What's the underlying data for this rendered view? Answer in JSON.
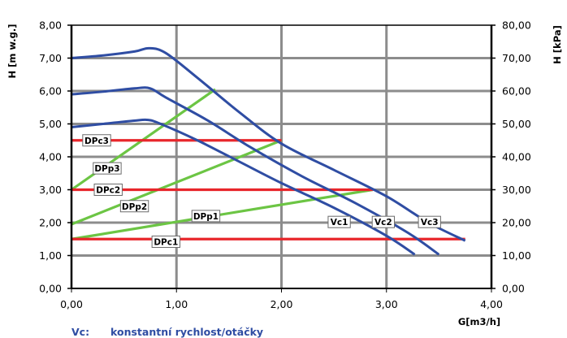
{
  "colors": {
    "pump_curve": "#2f4da3",
    "system_curve": "#6cc544",
    "pressure_line": "#e8262b",
    "grid": "#8c8c8c",
    "axis": "#000000"
  },
  "chart_data": {
    "type": "line",
    "xlabel": "G[m3/h]",
    "ylabel_left": "H [m w.g.]",
    "ylabel_right": "H [kPa]",
    "xlim": [
      0,
      4
    ],
    "ylim_left": [
      0,
      8
    ],
    "ylim_right": [
      0,
      80
    ],
    "x_ticks": [
      "0,00",
      "1,00",
      "2,00",
      "3,00",
      "4,00"
    ],
    "y_left_ticks": [
      "0,00",
      "1,00",
      "2,00",
      "3,00",
      "4,00",
      "5,00",
      "6,00",
      "7,00",
      "8,00"
    ],
    "y_right_ticks": [
      "0,00",
      "10,00",
      "20,00",
      "30,00",
      "40,00",
      "50,00",
      "60,00",
      "70,00",
      "80,00"
    ],
    "grid": true,
    "series": [
      {
        "name": "Vc1",
        "kind": "pump",
        "color": "#2f4da3",
        "x": [
          0,
          0.3,
          0.6,
          0.73,
          0.85,
          1.2,
          1.6,
          2.0,
          2.5,
          3.0,
          3.27
        ],
        "y": [
          4.9,
          5.0,
          5.1,
          5.12,
          5.0,
          4.5,
          3.85,
          3.2,
          2.45,
          1.6,
          1.03
        ]
      },
      {
        "name": "Vc2",
        "kind": "pump",
        "color": "#2f4da3",
        "x": [
          0,
          0.3,
          0.6,
          0.75,
          0.9,
          1.3,
          1.7,
          2.2,
          2.7,
          3.2,
          3.5
        ],
        "y": [
          5.9,
          5.98,
          6.08,
          6.08,
          5.8,
          5.1,
          4.3,
          3.4,
          2.6,
          1.7,
          1.03
        ]
      },
      {
        "name": "Vc3",
        "kind": "pump",
        "color": "#2f4da3",
        "x": [
          0,
          0.3,
          0.6,
          0.74,
          0.9,
          1.2,
          1.6,
          2.0,
          2.5,
          3.0,
          3.4,
          3.75
        ],
        "y": [
          7.0,
          7.08,
          7.2,
          7.3,
          7.15,
          6.4,
          5.35,
          4.4,
          3.6,
          2.8,
          2.0,
          1.45
        ]
      },
      {
        "name": "DPp1",
        "kind": "system",
        "color": "#6cc544",
        "x": [
          0,
          2.87
        ],
        "y": [
          1.5,
          3.0
        ]
      },
      {
        "name": "DPp2",
        "kind": "system",
        "color": "#6cc544",
        "x": [
          0,
          2.0
        ],
        "y": [
          1.95,
          4.5
        ]
      },
      {
        "name": "DPp3",
        "kind": "system",
        "color": "#6cc544",
        "x": [
          0,
          1.37
        ],
        "y": [
          3.0,
          6.05
        ]
      },
      {
        "name": "DPc1",
        "kind": "pressure",
        "color": "#e8262b",
        "x": [
          0,
          3.75
        ],
        "y": [
          1.5,
          1.5
        ]
      },
      {
        "name": "DPc2",
        "kind": "pressure",
        "color": "#e8262b",
        "x": [
          0,
          2.87
        ],
        "y": [
          3.0,
          3.0
        ]
      },
      {
        "name": "DPc3",
        "kind": "pressure",
        "color": "#e8262b",
        "x": [
          0,
          2.0
        ],
        "y": [
          4.5,
          4.5
        ]
      }
    ],
    "labels": [
      {
        "text": "DPc3",
        "x": 0.24,
        "y": 4.5
      },
      {
        "text": "DPp3",
        "x": 0.34,
        "y": 3.65
      },
      {
        "text": "DPc2",
        "x": 0.35,
        "y": 3.0
      },
      {
        "text": "DPp2",
        "x": 0.6,
        "y": 2.5
      },
      {
        "text": "DPp1",
        "x": 1.28,
        "y": 2.2
      },
      {
        "text": "DPc1",
        "x": 0.9,
        "y": 1.42
      },
      {
        "text": "Vc1",
        "x": 2.55,
        "y": 2.02
      },
      {
        "text": "Vc2",
        "x": 2.97,
        "y": 2.02
      },
      {
        "text": "Vc3",
        "x": 3.41,
        "y": 2.02
      }
    ]
  },
  "legend": {
    "key": "Vc:",
    "text": "konstantní rychlost/otáčky"
  }
}
